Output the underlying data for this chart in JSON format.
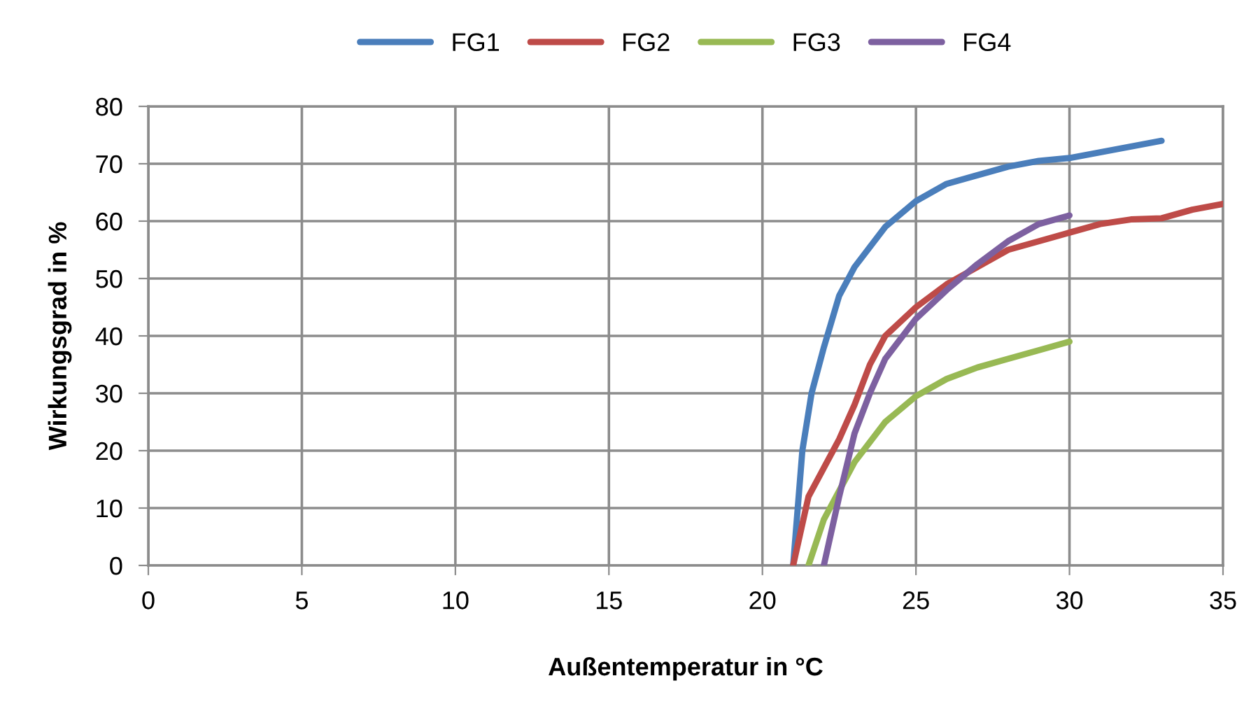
{
  "chart_data": {
    "type": "line",
    "xlabel": "Außentemperatur in °C",
    "ylabel": "Wirkungsgrad in %",
    "xlim": [
      0,
      35
    ],
    "xticks": [
      0,
      5,
      10,
      15,
      20,
      25,
      30,
      35
    ],
    "ylim": [
      0,
      80
    ],
    "yticks": [
      0,
      10,
      20,
      30,
      40,
      50,
      60,
      70,
      80
    ],
    "grid": true,
    "legend": "top",
    "marker": "none",
    "line_style": "solid",
    "series": [
      {
        "name": "FG1",
        "color": "#4a7ebb",
        "x": [
          21,
          21.3,
          21.6,
          22,
          22.5,
          23,
          24,
          25,
          26,
          27,
          28,
          29,
          30,
          31,
          32,
          33
        ],
        "values": [
          0,
          20,
          30,
          38,
          47,
          52,
          59,
          63.5,
          66.5,
          68,
          69.5,
          70.5,
          71,
          72,
          73,
          74
        ]
      },
      {
        "name": "FG2",
        "color": "#be4b48",
        "x": [
          21,
          21.5,
          22,
          22.5,
          23,
          23.5,
          24,
          25,
          26,
          27,
          28,
          29,
          30,
          31,
          32,
          33,
          34,
          35
        ],
        "values": [
          0,
          12,
          17,
          22,
          28,
          35,
          40,
          45,
          49,
          52,
          55,
          56.5,
          58,
          59.5,
          60.3,
          60.5,
          62,
          63
        ]
      },
      {
        "name": "FG3",
        "color": "#98b954",
        "x": [
          21.5,
          22,
          22.5,
          23,
          24,
          25,
          26,
          27,
          28,
          29,
          30
        ],
        "values": [
          0,
          8,
          13,
          18,
          25,
          29.5,
          32.5,
          34.5,
          36,
          37.5,
          39
        ]
      },
      {
        "name": "FG4",
        "color": "#7d60a0",
        "x": [
          22,
          22.5,
          23,
          23.5,
          24,
          25,
          26,
          27,
          28,
          29,
          30
        ],
        "values": [
          0,
          12,
          23,
          30,
          36,
          43,
          48,
          52.5,
          56.5,
          59.5,
          61
        ]
      }
    ]
  }
}
